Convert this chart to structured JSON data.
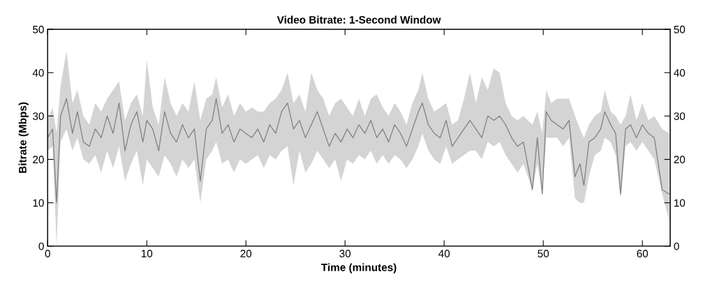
{
  "chart_data": {
    "type": "line",
    "title": "Video Bitrate: 1-Second Window",
    "xlabel": "Time (minutes)",
    "ylabel": "Bitrate (Mbps)",
    "xlim": [
      0,
      62.8
    ],
    "xticks": [
      0,
      10,
      20,
      30,
      40,
      50,
      60
    ],
    "ylim": [
      0,
      50
    ],
    "yticks": [
      0,
      10,
      20,
      30,
      40,
      50
    ],
    "y2lim": [
      0,
      50
    ],
    "y2ticks": [
      0,
      10,
      20,
      30,
      40,
      50
    ],
    "grid": false,
    "legend": false,
    "line_style": "solid",
    "marker": "none",
    "x": [
      0,
      0.5,
      0.9,
      1.3,
      1.9,
      2.5,
      3.0,
      3.6,
      4.2,
      4.8,
      5.4,
      6.0,
      6.6,
      7.2,
      7.8,
      8.4,
      9.0,
      9.6,
      10.0,
      10.6,
      11.2,
      11.8,
      12.4,
      13.0,
      13.6,
      14.2,
      14.8,
      15.4,
      16.0,
      16.6,
      17.0,
      17.6,
      18.2,
      18.8,
      19.4,
      20.0,
      20.6,
      21.2,
      21.8,
      22.4,
      23.0,
      23.6,
      24.2,
      24.8,
      25.4,
      26.0,
      26.6,
      27.2,
      27.8,
      28.4,
      29.0,
      29.6,
      30.2,
      30.8,
      31.4,
      32.0,
      32.6,
      33.2,
      33.8,
      34.4,
      35.0,
      35.6,
      36.2,
      36.8,
      37.4,
      37.8,
      38.4,
      39.0,
      39.6,
      40.2,
      40.8,
      41.4,
      42.0,
      42.6,
      43.2,
      43.8,
      44.4,
      45.0,
      45.6,
      46.2,
      46.8,
      47.4,
      48.0,
      48.9,
      49.4,
      49.9,
      50.3,
      50.8,
      51.4,
      52.0,
      52.6,
      53.2,
      53.7,
      54.1,
      54.6,
      55.2,
      55.8,
      56.2,
      56.8,
      57.3,
      57.8,
      58.3,
      58.8,
      59.4,
      60.0,
      60.6,
      61.2,
      62.0,
      62.7
    ],
    "series": [
      {
        "color": "#7f7f7f",
        "values": [
          25,
          27,
          10,
          30,
          34,
          26,
          31,
          24,
          23,
          27,
          25,
          30,
          26,
          33,
          22,
          28,
          31,
          24,
          29,
          27,
          22,
          31,
          26,
          24,
          28,
          25,
          27,
          15,
          27,
          29,
          34,
          26,
          28,
          24,
          27,
          26,
          25,
          27,
          24,
          28,
          26,
          31,
          33,
          27,
          29,
          25,
          28,
          31,
          27,
          23,
          26,
          24,
          27,
          25,
          28,
          26,
          29,
          25,
          27,
          24,
          28,
          26,
          23,
          27,
          31,
          33,
          28,
          26,
          25,
          29,
          23,
          25,
          27,
          29,
          27,
          25,
          30,
          29,
          30,
          28,
          25,
          23,
          24,
          13,
          25,
          12,
          31,
          29,
          28,
          27,
          29,
          16,
          19,
          14,
          24,
          25,
          27,
          31,
          28,
          26,
          12,
          27,
          28,
          25,
          28,
          26,
          25,
          13,
          12
        ],
        "lower": [
          22,
          23,
          0,
          24,
          27,
          22,
          25,
          20,
          19,
          21,
          17,
          22,
          18,
          23,
          15,
          19,
          22,
          14,
          20,
          18,
          16,
          21,
          19,
          16,
          20,
          18,
          20,
          10,
          20,
          22,
          24,
          19,
          20,
          17,
          20,
          19,
          20,
          21,
          18,
          21,
          20,
          22,
          23,
          14,
          22,
          17,
          19,
          22,
          20,
          18,
          20,
          15,
          20,
          19,
          21,
          20,
          22,
          19,
          21,
          19,
          21,
          20,
          18,
          20,
          23,
          26,
          22,
          20,
          19,
          23,
          19,
          20,
          21,
          22,
          22,
          20,
          24,
          23,
          24,
          21,
          19,
          17,
          19,
          13,
          19,
          12,
          25,
          25,
          25,
          23,
          25,
          11,
          10,
          10,
          16,
          21,
          22,
          25,
          24,
          21,
          11,
          23,
          24,
          22,
          24,
          22,
          20,
          12,
          6
        ],
        "upper": [
          29,
          32,
          26,
          37,
          45,
          33,
          36,
          30,
          28,
          33,
          31,
          34,
          36,
          38,
          29,
          33,
          35,
          30,
          43,
          32,
          28,
          39,
          33,
          30,
          33,
          31,
          38,
          29,
          34,
          35,
          39,
          32,
          35,
          30,
          33,
          31,
          32,
          31,
          31,
          33,
          34,
          36,
          40,
          33,
          35,
          31,
          40,
          36,
          34,
          30,
          33,
          34,
          32,
          30,
          34,
          30,
          34,
          35,
          32,
          30,
          33,
          31,
          28,
          33,
          36,
          40,
          34,
          31,
          32,
          33,
          28,
          29,
          34,
          40,
          33,
          39,
          36,
          41,
          40,
          33,
          30,
          29,
          30,
          28,
          31,
          26,
          36,
          33,
          34,
          34,
          34,
          30,
          27,
          25,
          28,
          30,
          31,
          36,
          31,
          30,
          28,
          30,
          35,
          29,
          33,
          29,
          30,
          27,
          26
        ]
      }
    ]
  }
}
